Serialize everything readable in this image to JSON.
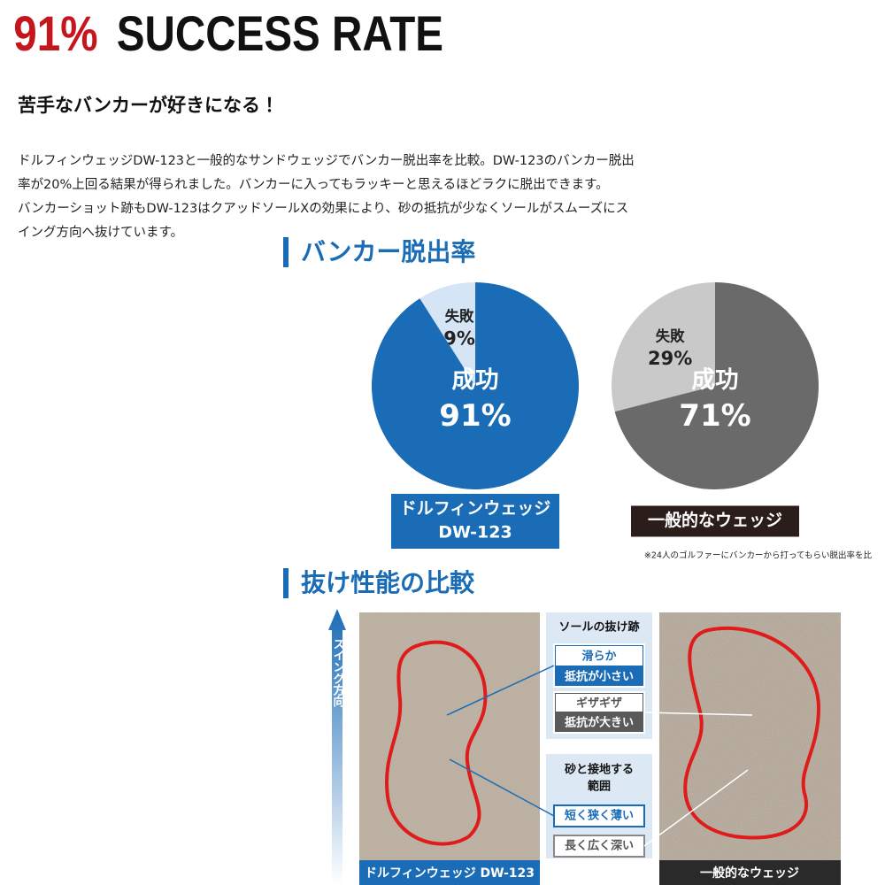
{
  "header": {
    "title_highlight": "91%",
    "title_rest": "SUCCESS RATE",
    "subtitle": "苦手なバンカーが好きになる！",
    "paragraph_lines": [
      "ドルフィンウェッジDW-123と一般的なサンドウェッジでバンカー脱出率を比較。DW-123のバンカー脱出",
      "率が20%上回る結果が得られました。バンカーに入ってもラッキーと思えるほどラクに脱出できます。",
      "バンカーショット跡もDW-123はクアッドソールXの効果により、砂の抵抗が少なくソールがスムーズにス",
      "イング方向へ抜けています。"
    ]
  },
  "escape_rate": {
    "heading": "バンカー脱出率",
    "pies": [
      {
        "type": "pie",
        "name_lines": [
          "ドルフィンウェッジ",
          "DW-123"
        ],
        "categories": [
          "失敗",
          "成功"
        ],
        "values": [
          9,
          91
        ],
        "value_labels": [
          "9%",
          "91%"
        ],
        "colors": [
          "#d5e5f5",
          "#1b6cb6"
        ]
      },
      {
        "type": "pie",
        "name_lines": [
          "一般的なウェッジ"
        ],
        "categories": [
          "失敗",
          "成功"
        ],
        "values": [
          29,
          71
        ],
        "value_labels": [
          "29%",
          "71%"
        ],
        "colors": [
          "#c9c9c9",
          "#6a6a6a"
        ]
      }
    ],
    "note": "※24人のゴルファーにバンカーから打ってもらい脱出率を比"
  },
  "comparison": {
    "heading": "抜け性能の比較",
    "arrow_label": "スイング方向",
    "photo_labels": [
      "ドルフィンウェッジ DW-123",
      "一般的なウェッジ"
    ],
    "trace_box": {
      "title": "ソールの抜け跡",
      "good": [
        "滑らか",
        "抵抗が小さい"
      ],
      "bad": [
        "ギザギザ",
        "抵抗が大きい"
      ]
    },
    "contact_box": {
      "title_lines": [
        "砂と接地する",
        "範囲"
      ],
      "good": "短く狭く薄い",
      "bad": "長く広く深い"
    }
  }
}
